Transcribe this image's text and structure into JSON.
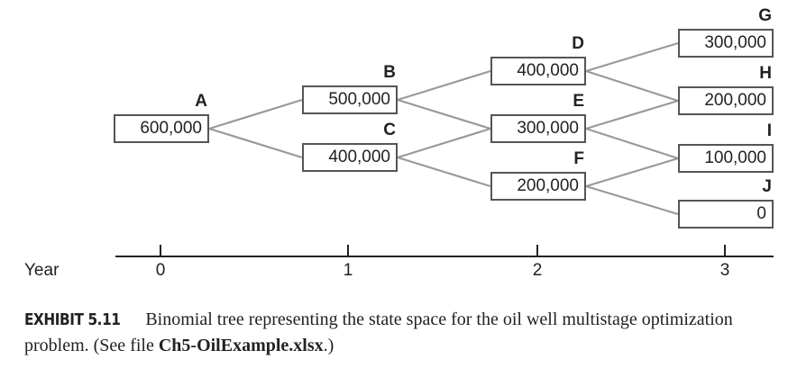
{
  "nodes": {
    "A": {
      "label": "A",
      "value": "600,000"
    },
    "B": {
      "label": "B",
      "value": "500,000"
    },
    "C": {
      "label": "C",
      "value": "400,000"
    },
    "D": {
      "label": "D",
      "value": "400,000"
    },
    "E": {
      "label": "E",
      "value": "300,000"
    },
    "F": {
      "label": "F",
      "value": "200,000"
    },
    "G": {
      "label": "G",
      "value": "300,000"
    },
    "H": {
      "label": "H",
      "value": "200,000"
    },
    "I": {
      "label": "I",
      "value": "100,000"
    },
    "J": {
      "label": "J",
      "value": "0"
    }
  },
  "edges": [
    [
      "A",
      "B"
    ],
    [
      "A",
      "C"
    ],
    [
      "B",
      "D"
    ],
    [
      "B",
      "E"
    ],
    [
      "C",
      "E"
    ],
    [
      "C",
      "F"
    ],
    [
      "D",
      "G"
    ],
    [
      "D",
      "H"
    ],
    [
      "E",
      "H"
    ],
    [
      "E",
      "I"
    ],
    [
      "F",
      "I"
    ],
    [
      "F",
      "J"
    ]
  ],
  "axis": {
    "label": "Year",
    "ticks": [
      "0",
      "1",
      "2",
      "3"
    ]
  },
  "caption": {
    "exhibit": "EXHIBIT 5.11",
    "text": "Binomial tree representing the state space for the oil well multistage optimization problem. (See file ",
    "file": "Ch5-OilExample.xlsx",
    "end": ".)"
  },
  "colors": {
    "edge": "#999999",
    "box_border": "#555555",
    "axis": "#222222"
  }
}
